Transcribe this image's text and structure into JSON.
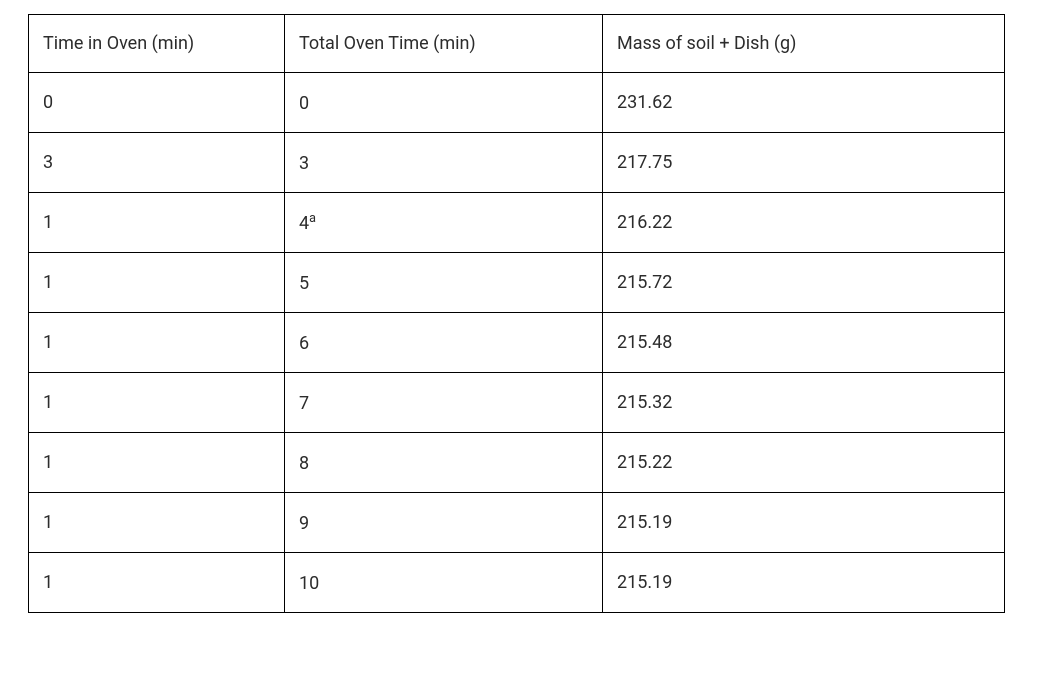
{
  "table": {
    "columns": [
      {
        "label": "Time in Oven (min)"
      },
      {
        "label": "Total Oven Time (min)"
      },
      {
        "label": "Mass of soil + Dish (g)"
      }
    ],
    "rows": [
      {
        "c0": "0",
        "c1": "0",
        "c1_sup": "",
        "c2": "231.62"
      },
      {
        "c0": "3",
        "c1": "3",
        "c1_sup": "",
        "c2": "217.75"
      },
      {
        "c0": "1",
        "c1": "4",
        "c1_sup": "a",
        "c2": "216.22"
      },
      {
        "c0": "1",
        "c1": "5",
        "c1_sup": "",
        "c2": "215.72"
      },
      {
        "c0": "1",
        "c1": "6",
        "c1_sup": "",
        "c2": "215.48"
      },
      {
        "c0": "1",
        "c1": "7",
        "c1_sup": "",
        "c2": "215.32"
      },
      {
        "c0": "1",
        "c1": "8",
        "c1_sup": "",
        "c2": "215.22"
      },
      {
        "c0": "1",
        "c1": "9",
        "c1_sup": "",
        "c2": "215.19"
      },
      {
        "c0": "1",
        "c1": "10",
        "c1_sup": "",
        "c2": "215.19"
      }
    ],
    "border_color": "#000000",
    "background_color": "#ffffff",
    "text_color": "#2c2c2c",
    "font_size_pt": 14
  }
}
